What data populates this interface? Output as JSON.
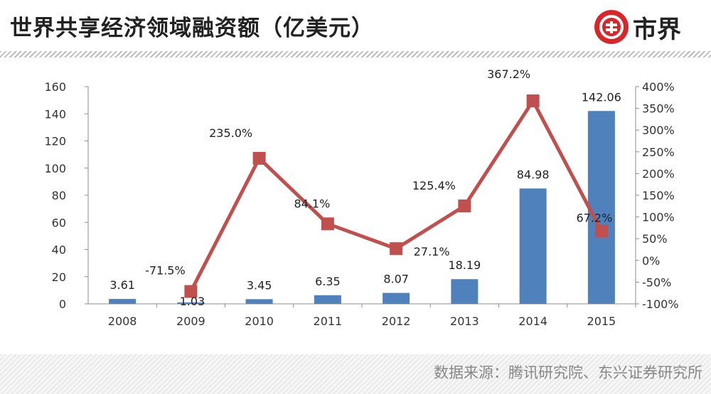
{
  "header": {
    "title": "世界共享经济领域融资额（亿美元）",
    "logo_text": "市界",
    "logo_icon": "dollar-circle-icon",
    "brand_color": "#d7272b"
  },
  "footer": {
    "source": "数据来源：腾讯研究院、东兴证券研究所"
  },
  "chart_data": {
    "type": "bar",
    "categories": [
      "2008",
      "2009",
      "2010",
      "2011",
      "2012",
      "2013",
      "2014",
      "2015"
    ],
    "series": [
      {
        "type": "bar",
        "axis": "left",
        "color": "#4f81bd",
        "values": [
          3.61,
          1.03,
          3.45,
          6.35,
          8.07,
          18.19,
          84.98,
          142.06
        ],
        "labels": [
          "3.61",
          "1.03",
          "3.45",
          "6.35",
          "8.07",
          "18.19",
          "84.98",
          "142.06"
        ]
      },
      {
        "type": "line",
        "axis": "right",
        "color": "#c0504d",
        "values": [
          null,
          -71.5,
          235.0,
          84.1,
          27.1,
          125.4,
          367.2,
          67.2
        ],
        "labels": [
          "",
          "-71.5%",
          "235.0%",
          "84.1%",
          "27.1%",
          "125.4%",
          "367.2%",
          "67.2%"
        ]
      }
    ],
    "y_left": {
      "ylim": [
        0,
        160
      ],
      "ticks": [
        "0",
        "20",
        "40",
        "60",
        "80",
        "100",
        "120",
        "140",
        "160"
      ]
    },
    "y_right": {
      "ylim": [
        -100,
        400
      ],
      "ticks": [
        "-100%",
        "-50%",
        "0%",
        "50%",
        "100%",
        "150%",
        "200%",
        "250%",
        "300%",
        "350%",
        "400%"
      ]
    },
    "grid": false,
    "legend": "none"
  }
}
